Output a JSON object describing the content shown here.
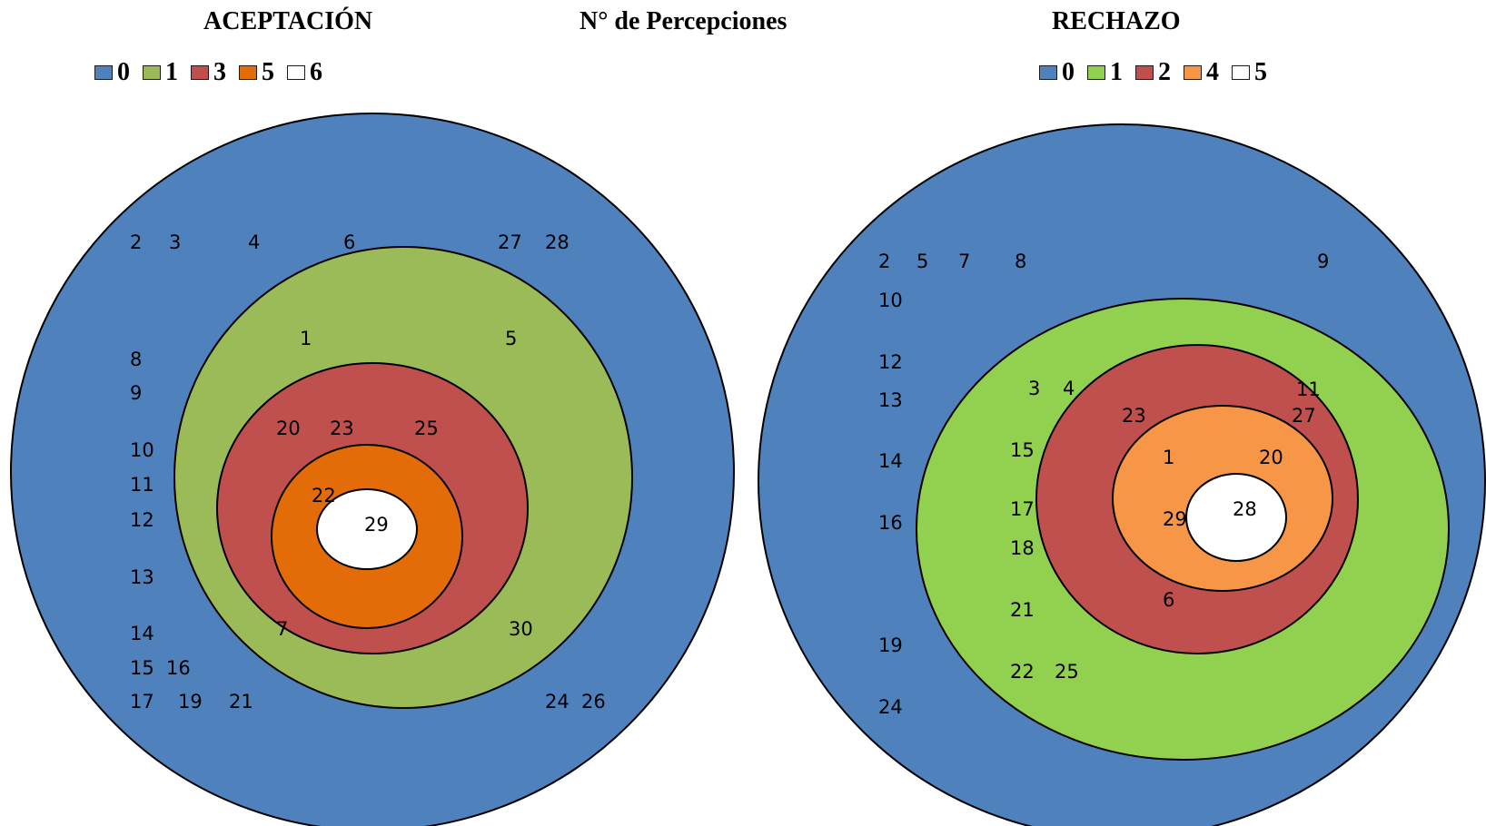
{
  "headers": {
    "left": "ACEPTACIÓN",
    "center": "N°  de Percepciones",
    "right": "RECHAZO"
  },
  "colors": {
    "blue": "#4f81bd",
    "olive_green": "#9bbb59",
    "bright_green": "#92d050",
    "red": "#c0504d",
    "dark_orange": "#e36c09",
    "light_orange": "#f79646",
    "white": "#ffffff",
    "outline": "#000000"
  },
  "acceptance": {
    "legend": [
      {
        "label": "0",
        "color": "#4f81bd"
      },
      {
        "label": "1",
        "color": "#9bbb59"
      },
      {
        "label": "3",
        "color": "#c0504d"
      },
      {
        "label": "5",
        "color": "#e36c09"
      },
      {
        "label": "6",
        "color": "#ffffff"
      }
    ],
    "levels": [
      {
        "perceptions": "0",
        "color": "#4f81bd",
        "members": [
          "2",
          "3",
          "4",
          "6",
          "27",
          "28",
          "8",
          "9",
          "10",
          "11",
          "12",
          "13",
          "14",
          "15",
          "16",
          "17",
          "19",
          "21",
          "24",
          "26"
        ]
      },
      {
        "perceptions": "1",
        "color": "#9bbb59",
        "members": [
          "1",
          "5",
          "30"
        ]
      },
      {
        "perceptions": "3",
        "color": "#c0504d",
        "members": [
          "20",
          "23",
          "25",
          "7"
        ]
      },
      {
        "perceptions": "5",
        "color": "#e36c09",
        "members": [
          "22"
        ]
      },
      {
        "perceptions": "6",
        "color": "#ffffff",
        "members": [
          "29"
        ]
      }
    ]
  },
  "rejection": {
    "legend": [
      {
        "label": "0",
        "color": "#4f81bd"
      },
      {
        "label": "1",
        "color": "#92d050"
      },
      {
        "label": "2",
        "color": "#c0504d"
      },
      {
        "label": "4",
        "color": "#f79646"
      },
      {
        "label": "5",
        "color": "#ffffff"
      }
    ],
    "levels": [
      {
        "perceptions": "0",
        "color": "#4f81bd",
        "members": [
          "2",
          "5",
          "7",
          "8",
          "9",
          "10",
          "12",
          "13",
          "14",
          "16",
          "19",
          "24"
        ]
      },
      {
        "perceptions": "1",
        "color": "#92d050",
        "members": [
          "3",
          "4",
          "15",
          "17",
          "18",
          "21",
          "22",
          "25"
        ]
      },
      {
        "perceptions": "2",
        "color": "#c0504d",
        "members": [
          "23",
          "27",
          "11",
          "6"
        ]
      },
      {
        "perceptions": "4",
        "color": "#f79646",
        "members": [
          "1",
          "20",
          "29"
        ]
      },
      {
        "perceptions": "5",
        "color": "#ffffff",
        "members": [
          "28"
        ]
      }
    ]
  }
}
